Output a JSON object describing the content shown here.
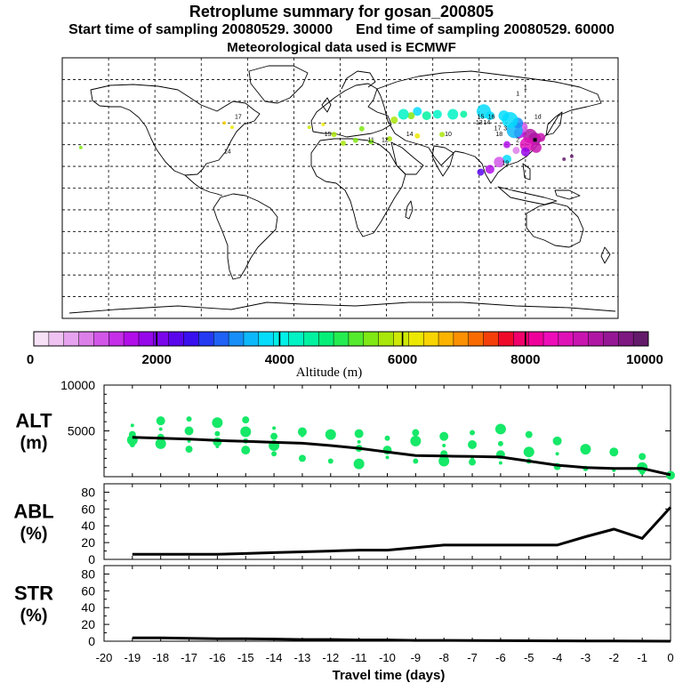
{
  "header": {
    "title": "Retroplume summary for gosan_200805",
    "start_time": "Start time of sampling 20080529. 30000",
    "end_time": "End time of sampling 20080529. 60000",
    "met_data": "Meteorological data used is ECMWF"
  },
  "colorbar": {
    "label": "Altitude (m)",
    "ticks": [
      "0",
      "2000",
      "4000",
      "6000",
      "8000",
      "10000"
    ],
    "colors": [
      "#f7e1f7",
      "#efc2f1",
      "#e6a2ee",
      "#dd7fe9",
      "#d257e8",
      "#c52fe8",
      "#b10ee9",
      "#9607e9",
      "#7a06eb",
      "#5a07ec",
      "#3a10ee",
      "#2439f2",
      "#1f62f5",
      "#178ef8",
      "#0db8fa",
      "#05dcfb",
      "#00f0e8",
      "#00f3c5",
      "#00f2a0",
      "#05ef78",
      "#25ec50",
      "#55ea2e",
      "#80e815",
      "#a9e60a",
      "#cee805",
      "#ece802",
      "#f8d400",
      "#fbb300",
      "#fb9000",
      "#f96b00",
      "#f53f0a",
      "#f00a2a",
      "#f0006a",
      "#f0009a",
      "#ee0cb9",
      "#df12b8",
      "#c815b0",
      "#b016a4",
      "#951795",
      "#7d1980",
      "#641a6a"
    ]
  },
  "map_labels": [
    {
      "text": "1d",
      "x": 128,
      "y": -12
    },
    {
      "text": "2",
      "x": 115,
      "y": -8
    },
    {
      "text": "3",
      "x": 107,
      "y": -10
    },
    {
      "text": "14",
      "x": 95,
      "y": -11
    },
    {
      "text": "13",
      "x": 90,
      "y": -11
    },
    {
      "text": "1",
      "x": 115,
      "y": -16
    },
    {
      "text": "1",
      "x": 120,
      "y": -17
    },
    {
      "text": "19",
      "x": 107,
      "y": -4
    },
    {
      "text": "18",
      "x": 103,
      "y": -9
    },
    {
      "text": "17",
      "x": 102,
      "y": -10
    },
    {
      "text": "16",
      "x": 98,
      "y": -12
    },
    {
      "text": "15",
      "x": 91,
      "y": -12
    },
    {
      "text": "10",
      "x": 70,
      "y": -9
    },
    {
      "text": "14",
      "x": 45,
      "y": -9
    },
    {
      "text": "11",
      "x": 20,
      "y": -8
    },
    {
      "text": "12",
      "x": 29,
      "y": -8
    },
    {
      "text": "15",
      "x": -8,
      "y": -9
    },
    {
      "text": "17",
      "x": -66,
      "y": -12
    },
    {
      "text": "14",
      "x": -73,
      "y": -6
    }
  ],
  "chart_data": [
    {
      "type": "map",
      "title": "Retroplume summary for gosan_200805",
      "projection": "equirectangular",
      "lon_range": [
        -180,
        180
      ],
      "lat_range": [
        -90,
        90
      ],
      "gridlines": "every 30 degrees",
      "receptor": {
        "name": "gosan",
        "lon": 126.2,
        "lat": 33.3
      },
      "clusters": [
        {
          "lon": 126,
          "lat": 34,
          "r": 7,
          "alt": 9500
        },
        {
          "lon": 123,
          "lat": 36,
          "r": 8,
          "alt": 9200
        },
        {
          "lon": 130,
          "lat": 35,
          "r": 5,
          "alt": 9000
        },
        {
          "lon": 121,
          "lat": 30,
          "r": 8,
          "alt": 8600
        },
        {
          "lon": 127,
          "lat": 28,
          "r": 6,
          "alt": 9000
        },
        {
          "lon": 120,
          "lat": 25,
          "r": 5,
          "alt": 1800
        },
        {
          "lon": 116,
          "lat": 38,
          "r": 6,
          "alt": 1600
        },
        {
          "lon": 118,
          "lat": 42,
          "r": 6,
          "alt": 1200
        },
        {
          "lon": 113,
          "lat": 40,
          "r": 9,
          "alt": 3500
        },
        {
          "lon": 115,
          "lat": 45,
          "r": 6,
          "alt": 3400
        },
        {
          "lon": 110,
          "lat": 47,
          "r": 9,
          "alt": 3800
        },
        {
          "lon": 106,
          "lat": 50,
          "r": 6,
          "alt": 3900
        },
        {
          "lon": 97,
          "lat": 50,
          "r": 5,
          "alt": 3900
        },
        {
          "lon": 93,
          "lat": 53,
          "r": 8,
          "alt": 3800
        },
        {
          "lon": 80,
          "lat": 51,
          "r": 4,
          "alt": 4400
        },
        {
          "lon": 73,
          "lat": 51,
          "r": 6,
          "alt": 4300
        },
        {
          "lon": 63,
          "lat": 51,
          "r": 5,
          "alt": 4200
        },
        {
          "lon": 56,
          "lat": 50,
          "r": 5,
          "alt": 4600
        },
        {
          "lon": 50,
          "lat": 53,
          "r": 5,
          "alt": 3900
        },
        {
          "lon": 46,
          "lat": 50,
          "r": 4,
          "alt": 5600
        },
        {
          "lon": 41,
          "lat": 51,
          "r": 6,
          "alt": 4300
        },
        {
          "lon": 35,
          "lat": 47,
          "r": 4,
          "alt": 5800
        },
        {
          "lon": 108,
          "lat": 20,
          "r": 5,
          "alt": 3800
        },
        {
          "lon": 103,
          "lat": 18,
          "r": 6,
          "alt": 1200
        },
        {
          "lon": 97,
          "lat": 13,
          "r": 5,
          "alt": 1600
        },
        {
          "lon": 91,
          "lat": 11,
          "r": 4,
          "alt": 2400
        },
        {
          "lon": 114,
          "lat": 26,
          "r": 4,
          "alt": 800
        },
        {
          "lon": 108,
          "lat": 30,
          "r": 4,
          "alt": 1500
        },
        {
          "lon": 66,
          "lat": 37,
          "r": 3,
          "alt": 5800
        },
        {
          "lon": 50,
          "lat": 36,
          "r": 3,
          "alt": 6200
        },
        {
          "lon": 32,
          "lat": 34,
          "r": 3,
          "alt": 5700
        },
        {
          "lon": 20,
          "lat": 32,
          "r": 3,
          "alt": 5400
        },
        {
          "lon": 10,
          "lat": 33,
          "r": 3,
          "alt": 5600
        },
        {
          "lon": 2,
          "lat": 31,
          "r": 3,
          "alt": 5800
        },
        {
          "lon": -4,
          "lat": 37,
          "r": 3,
          "alt": 5700
        },
        {
          "lon": 14,
          "lat": 41,
          "r": 3,
          "alt": 5600
        },
        {
          "lon": -11,
          "lat": 44,
          "r": 2,
          "alt": 6200
        },
        {
          "lon": -20,
          "lat": 42,
          "r": 2,
          "alt": 5900
        },
        {
          "lon": -70,
          "lat": 42,
          "r": 2,
          "alt": 6300
        },
        {
          "lon": -75,
          "lat": 45,
          "r": 2,
          "alt": 6500
        },
        {
          "lon": -168,
          "lat": 28,
          "r": 2,
          "alt": 5500
        },
        {
          "lon": 145,
          "lat": 20,
          "r": 2,
          "alt": 9800
        },
        {
          "lon": 150,
          "lat": 22,
          "r": 2,
          "alt": 9800
        }
      ]
    },
    {
      "type": "scatter+line",
      "name": "ALT",
      "ylabel": "ALT\n(m)",
      "ylim": [
        0,
        10000
      ],
      "yticks": [
        5000,
        10000
      ],
      "xlim": [
        -20,
        0
      ],
      "mean_x": [
        -19,
        -18,
        -17,
        -16,
        -15,
        -14,
        -13,
        -12,
        -11,
        -10,
        -9,
        -8,
        -7,
        -6,
        -5,
        -4,
        -3,
        -2,
        -1,
        0
      ],
      "mean_y": [
        4300,
        4200,
        4100,
        3950,
        3850,
        3750,
        3650,
        3400,
        3100,
        2700,
        2300,
        2250,
        2200,
        2150,
        1700,
        1250,
        1000,
        900,
        900,
        200
      ],
      "cluster_points": [
        {
          "x": -19,
          "y": 5600
        },
        {
          "x": -19,
          "y": 4600
        },
        {
          "x": -19,
          "y": 4000
        },
        {
          "x": -19,
          "y": 3500
        },
        {
          "x": -18,
          "y": 6100
        },
        {
          "x": -18,
          "y": 5200
        },
        {
          "x": -18,
          "y": 4300
        },
        {
          "x": -18,
          "y": 3600
        },
        {
          "x": -17,
          "y": 6300
        },
        {
          "x": -17,
          "y": 5000
        },
        {
          "x": -17,
          "y": 3900
        },
        {
          "x": -17,
          "y": 3000
        },
        {
          "x": -16,
          "y": 5900
        },
        {
          "x": -16,
          "y": 4700
        },
        {
          "x": -16,
          "y": 3800
        },
        {
          "x": -16,
          "y": 3300
        },
        {
          "x": -15,
          "y": 6200
        },
        {
          "x": -15,
          "y": 4900
        },
        {
          "x": -15,
          "y": 3900
        },
        {
          "x": -15,
          "y": 2900
        },
        {
          "x": -14,
          "y": 5300
        },
        {
          "x": -14,
          "y": 4400
        },
        {
          "x": -14,
          "y": 3400
        },
        {
          "x": -14,
          "y": 2500
        },
        {
          "x": -13,
          "y": 4900
        },
        {
          "x": -13,
          "y": 4500
        },
        {
          "x": -13,
          "y": 2000
        },
        {
          "x": -12,
          "y": 4600
        },
        {
          "x": -12,
          "y": 1700
        },
        {
          "x": -11,
          "y": 4700
        },
        {
          "x": -11,
          "y": 3800
        },
        {
          "x": -11,
          "y": 3100
        },
        {
          "x": -11,
          "y": 1400
        },
        {
          "x": -10,
          "y": 4200
        },
        {
          "x": -10,
          "y": 2900
        },
        {
          "x": -10,
          "y": 2100
        },
        {
          "x": -9,
          "y": 4800
        },
        {
          "x": -9,
          "y": 3900
        },
        {
          "x": -9,
          "y": 1700
        },
        {
          "x": -8,
          "y": 4400
        },
        {
          "x": -8,
          "y": 3400
        },
        {
          "x": -8,
          "y": 2500
        },
        {
          "x": -8,
          "y": 1700
        },
        {
          "x": -7,
          "y": 4800
        },
        {
          "x": -7,
          "y": 3500
        },
        {
          "x": -7,
          "y": 2100
        },
        {
          "x": -7,
          "y": 1600
        },
        {
          "x": -6,
          "y": 5200
        },
        {
          "x": -6,
          "y": 3600
        },
        {
          "x": -6,
          "y": 2400
        },
        {
          "x": -6,
          "y": 1500
        },
        {
          "x": -5,
          "y": 4600
        },
        {
          "x": -5,
          "y": 2700
        },
        {
          "x": -5,
          "y": 1700
        },
        {
          "x": -4,
          "y": 3900
        },
        {
          "x": -4,
          "y": 2500
        },
        {
          "x": -4,
          "y": 1100
        },
        {
          "x": -3,
          "y": 3000
        },
        {
          "x": -3,
          "y": 900
        },
        {
          "x": -2,
          "y": 2700
        },
        {
          "x": -2,
          "y": 700
        },
        {
          "x": -1,
          "y": 2200
        },
        {
          "x": -1,
          "y": 1000
        },
        {
          "x": -1,
          "y": 500
        },
        {
          "x": 0,
          "y": 150
        }
      ]
    },
    {
      "type": "line",
      "name": "ABL",
      "ylabel": "ABL\n(%)",
      "ylim": [
        0,
        90
      ],
      "yticks": [
        0,
        20,
        40,
        60,
        80
      ],
      "xlim": [
        -20,
        0
      ],
      "x": [
        -19,
        -18,
        -17,
        -16,
        -15,
        -14,
        -13,
        -12,
        -11,
        -10,
        -9,
        -8,
        -7,
        -6,
        -5,
        -4,
        -3,
        -2,
        -1,
        0
      ],
      "y": [
        6,
        6,
        6,
        6,
        7,
        8,
        9,
        10,
        11,
        11,
        14,
        17,
        17,
        17,
        17,
        17,
        27,
        36,
        25,
        62
      ]
    },
    {
      "type": "line",
      "name": "STR",
      "ylabel": "STR\n(%)",
      "ylim": [
        0,
        90
      ],
      "yticks": [
        0,
        20,
        40,
        60,
        80
      ],
      "xlim": [
        -20,
        0
      ],
      "x": [
        -19,
        -18,
        -17,
        -16,
        -15,
        -14,
        -13,
        -12,
        -11,
        -10,
        -9,
        -8,
        -7,
        -6,
        -5,
        -4,
        -3,
        -2,
        -1,
        0
      ],
      "y": [
        4,
        4,
        3.5,
        3,
        3,
        2.5,
        2,
        2,
        1.5,
        1.5,
        1,
        1,
        0.8,
        0.6,
        0.5,
        0.4,
        0.3,
        0.2,
        0.1,
        0
      ],
      "xlabel": "Travel time (days)",
      "xticks": [
        "-20",
        "-19",
        "-18",
        "-17",
        "-16",
        "-15",
        "-14",
        "-13",
        "-12",
        "-11",
        "-10",
        "-9",
        "-8",
        "-7",
        "-6",
        "-5",
        "-4",
        "-3",
        "-2",
        "-1",
        "0"
      ]
    }
  ]
}
